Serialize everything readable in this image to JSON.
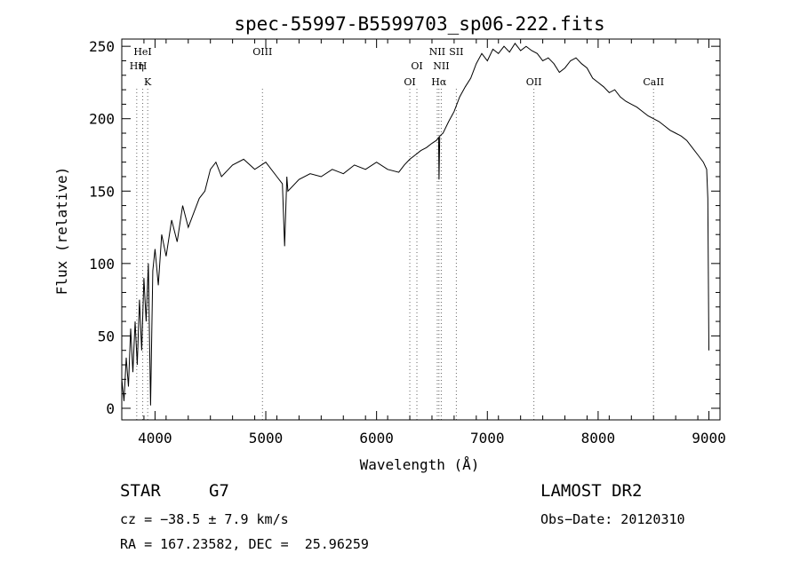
{
  "chart_data": {
    "type": "line",
    "title": "spec-55997-B5599703_sp06-222.fits",
    "xlabel": "Wavelength (Å)",
    "ylabel": "Flux (relative)",
    "xlim": [
      3700,
      9100
    ],
    "ylim": [
      -8,
      255
    ],
    "x_ticks": [
      4000,
      5000,
      6000,
      7000,
      8000,
      9000
    ],
    "y_ticks": [
      0,
      50,
      100,
      150,
      200,
      250
    ],
    "grid": false,
    "line_color": "#000000",
    "series": [
      {
        "x": [
          3700,
          3720,
          3740,
          3760,
          3780,
          3800,
          3820,
          3840,
          3860,
          3880,
          3900,
          3920,
          3940,
          3960,
          3980,
          4000,
          4030,
          4060,
          4100,
          4150,
          4200,
          4250,
          4300,
          4350,
          4400,
          4450,
          4500,
          4550,
          4600,
          4700,
          4800,
          4900,
          5000,
          5100,
          5150,
          5170,
          5190,
          5200,
          5300,
          5400,
          5500,
          5600,
          5700,
          5800,
          5900,
          6000,
          6100,
          6200,
          6250,
          6300,
          6350,
          6400,
          6450,
          6500,
          6540,
          6560,
          6564,
          6570,
          6600,
          6650,
          6700,
          6750,
          6800,
          6850,
          6900,
          6950,
          7000,
          7050,
          7100,
          7150,
          7200,
          7250,
          7300,
          7350,
          7400,
          7450,
          7500,
          7550,
          7600,
          7650,
          7700,
          7750,
          7800,
          7850,
          7900,
          7950,
          8000,
          8050,
          8100,
          8150,
          8200,
          8250,
          8300,
          8350,
          8400,
          8450,
          8500,
          8550,
          8600,
          8650,
          8700,
          8750,
          8800,
          8850,
          8900,
          8950,
          8980,
          8990,
          9000
        ],
        "y": [
          20,
          5,
          35,
          15,
          55,
          25,
          60,
          30,
          75,
          40,
          90,
          60,
          100,
          2,
          95,
          110,
          85,
          120,
          105,
          130,
          115,
          140,
          125,
          135,
          145,
          150,
          165,
          170,
          160,
          168,
          172,
          165,
          170,
          160,
          155,
          112,
          160,
          150,
          158,
          162,
          160,
          165,
          162,
          168,
          165,
          170,
          165,
          163,
          168,
          172,
          175,
          178,
          180,
          183,
          185,
          187,
          158,
          188,
          190,
          198,
          205,
          215,
          222,
          228,
          238,
          245,
          240,
          248,
          245,
          250,
          246,
          252,
          247,
          250,
          247,
          245,
          240,
          242,
          238,
          232,
          235,
          240,
          242,
          238,
          235,
          228,
          225,
          222,
          218,
          220,
          215,
          212,
          210,
          208,
          205,
          202,
          200,
          198,
          195,
          192,
          190,
          188,
          185,
          180,
          175,
          170,
          165,
          145,
          40
        ]
      }
    ],
    "line_markers": [
      {
        "wavelength": 3889,
        "label": "HeI",
        "row": 1
      },
      {
        "wavelength": 3835,
        "label": "Hη",
        "row": 2
      },
      {
        "wavelength": 3889,
        "label": "H",
        "row": 2
      },
      {
        "wavelength": 3934,
        "label": "K",
        "row": 3
      },
      {
        "wavelength": 4970,
        "label": "OIII",
        "row": 1
      },
      {
        "wavelength": 6300,
        "label": "OI",
        "row": 3
      },
      {
        "wavelength": 6364,
        "label": "OI",
        "row": 2
      },
      {
        "wavelength": 6548,
        "label": "NII",
        "row": 1
      },
      {
        "wavelength": 6563,
        "label": "Hα",
        "row": 3
      },
      {
        "wavelength": 6584,
        "label": "NII",
        "row": 2
      },
      {
        "wavelength": 6720,
        "label": "SII",
        "row": 1
      },
      {
        "wavelength": 7420,
        "label": "OII",
        "row": 3
      },
      {
        "wavelength": 8500,
        "label": "CaII",
        "row": 3
      }
    ]
  },
  "info": {
    "class_label": "STAR",
    "subclass": "G7",
    "survey": "LAMOST DR2",
    "cz": "cz = −38.5 ± 7.9 km/s",
    "obs_date": "Obs−Date: 20120310",
    "coords": "RA = 167.23582, DEC =  25.96259"
  }
}
